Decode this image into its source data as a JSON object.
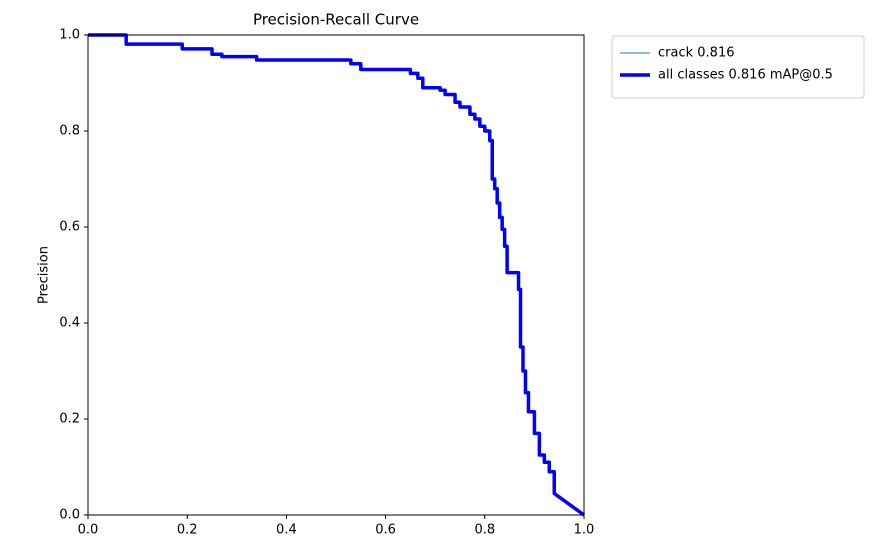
{
  "chart_data": {
    "type": "line",
    "title": "Precision-Recall Curve",
    "ylabel": "Precision",
    "x": [
      0,
      0.077,
      0.077,
      0.19,
      0.19,
      0.25,
      0.25,
      0.27,
      0.27,
      0.34,
      0.34,
      0.53,
      0.53,
      0.55,
      0.55,
      0.65,
      0.65,
      0.665,
      0.665,
      0.675,
      0.675,
      0.71,
      0.71,
      0.72,
      0.72,
      0.74,
      0.74,
      0.75,
      0.75,
      0.77,
      0.77,
      0.78,
      0.78,
      0.79,
      0.79,
      0.8,
      0.8,
      0.81,
      0.81,
      0.815,
      0.815,
      0.82,
      0.82,
      0.825,
      0.825,
      0.83,
      0.83,
      0.835,
      0.835,
      0.84,
      0.84,
      0.845,
      0.845,
      0.868,
      0.868,
      0.872,
      0.872,
      0.877,
      0.877,
      0.882,
      0.882,
      0.888,
      0.888,
      0.9,
      0.9,
      0.91,
      0.91,
      0.92,
      0.92,
      0.93,
      0.93,
      0.94,
      0.94,
      1.0
    ],
    "series": [
      {
        "name": "crack 0.816",
        "color": "#1f77b4",
        "linewidth": 1,
        "values": [
          1,
          1,
          0.981,
          0.981,
          0.971,
          0.971,
          0.96,
          0.96,
          0.955,
          0.955,
          0.948,
          0.948,
          0.94,
          0.94,
          0.928,
          0.928,
          0.92,
          0.92,
          0.91,
          0.91,
          0.89,
          0.89,
          0.885,
          0.885,
          0.876,
          0.876,
          0.86,
          0.86,
          0.85,
          0.85,
          0.835,
          0.835,
          0.825,
          0.825,
          0.81,
          0.81,
          0.8,
          0.8,
          0.78,
          0.78,
          0.7,
          0.7,
          0.68,
          0.68,
          0.65,
          0.65,
          0.62,
          0.62,
          0.595,
          0.595,
          0.56,
          0.56,
          0.505,
          0.505,
          0.47,
          0.47,
          0.35,
          0.35,
          0.3,
          0.3,
          0.255,
          0.255,
          0.215,
          0.215,
          0.17,
          0.17,
          0.125,
          0.125,
          0.11,
          0.11,
          0.09,
          0.09,
          0.045,
          0
        ]
      },
      {
        "name": "all classes 0.816 mAP@0.5",
        "color": "#0000ff",
        "linewidth": 3.5,
        "values": [
          1,
          1,
          0.981,
          0.981,
          0.971,
          0.971,
          0.96,
          0.96,
          0.955,
          0.955,
          0.948,
          0.948,
          0.94,
          0.94,
          0.928,
          0.928,
          0.92,
          0.92,
          0.91,
          0.91,
          0.89,
          0.89,
          0.885,
          0.885,
          0.876,
          0.876,
          0.86,
          0.86,
          0.85,
          0.85,
          0.835,
          0.835,
          0.825,
          0.825,
          0.81,
          0.81,
          0.8,
          0.8,
          0.78,
          0.78,
          0.7,
          0.7,
          0.68,
          0.68,
          0.65,
          0.65,
          0.62,
          0.62,
          0.595,
          0.595,
          0.56,
          0.56,
          0.505,
          0.505,
          0.47,
          0.47,
          0.35,
          0.35,
          0.3,
          0.3,
          0.255,
          0.255,
          0.215,
          0.215,
          0.17,
          0.17,
          0.125,
          0.125,
          0.11,
          0.11,
          0.09,
          0.09,
          0.045,
          0
        ]
      }
    ],
    "xlim": [
      0,
      1
    ],
    "ylim": [
      0,
      1
    ],
    "xticks": [
      {
        "value": 0,
        "label": "0.0"
      },
      0.2,
      0.4,
      0.6,
      0.8,
      {
        "value": 1,
        "label": "1.0"
      }
    ],
    "yticks": [
      {
        "value": 0,
        "label": "0.0"
      },
      0.2,
      0.4,
      0.6,
      0.8,
      {
        "value": 1,
        "label": "1.0"
      }
    ],
    "grid": false,
    "legend": "outside upper right"
  }
}
